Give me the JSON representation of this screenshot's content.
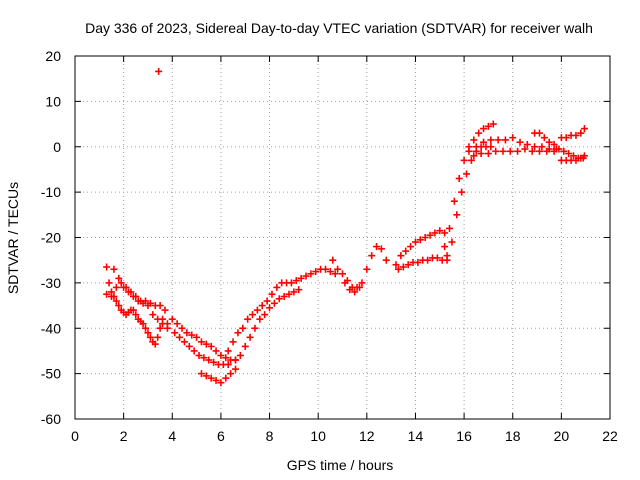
{
  "chart_data": {
    "type": "scatter",
    "title": "Day 336 of 2023, Sidereal Day-to-day VTEC variation (SDTVAR) for receiver walh",
    "xlabel": "GPS time / hours",
    "ylabel": "SDTVAR / TECUs",
    "xlim": [
      0,
      22
    ],
    "ylim": [
      -60,
      20
    ],
    "xticks": [
      0,
      2,
      4,
      6,
      8,
      10,
      12,
      14,
      16,
      18,
      20,
      22
    ],
    "yticks": [
      -60,
      -50,
      -40,
      -30,
      -20,
      -10,
      0,
      10,
      20
    ],
    "grid": true,
    "marker": "+",
    "series": [
      {
        "name": "SDTVAR",
        "color": "#ff0000",
        "x": [
          1.3,
          1.4,
          1.5,
          1.6,
          1.7,
          1.8,
          1.9,
          2.0,
          2.1,
          2.2,
          2.3,
          2.4,
          2.5,
          2.6,
          2.7,
          2.8,
          2.9,
          3.0,
          3.1,
          3.2,
          3.3,
          3.4,
          3.5,
          3.6,
          3.7,
          3.8,
          1.3,
          1.5,
          1.7,
          1.9,
          2.1,
          2.3,
          2.5,
          2.7,
          2.9,
          3.1,
          3.3,
          3.5,
          1.6,
          1.8,
          2.0,
          2.2,
          2.4,
          2.6,
          2.8,
          3.0,
          3.2,
          3.4,
          3.6,
          3.8,
          3.44,
          4.0,
          4.2,
          4.4,
          4.6,
          4.8,
          5.0,
          5.2,
          5.4,
          5.6,
          5.8,
          6.0,
          6.2,
          6.4,
          6.6,
          4.1,
          4.3,
          4.5,
          4.7,
          4.9,
          5.1,
          5.3,
          5.5,
          5.7,
          5.9,
          6.1,
          6.3,
          5.2,
          5.4,
          5.6,
          5.8,
          6.0,
          6.2,
          6.4,
          6.6,
          6.3,
          6.5,
          6.7,
          6.9,
          7.1,
          7.3,
          7.5,
          7.7,
          7.9,
          8.1,
          8.3,
          8.5,
          8.7,
          8.9,
          9.1,
          9.3,
          9.5,
          9.7,
          9.9,
          10.1,
          10.3,
          10.5,
          10.7,
          6.6,
          6.8,
          7.0,
          7.2,
          7.4,
          7.6,
          7.8,
          8.0,
          8.2,
          8.4,
          8.6,
          8.8,
          9.0,
          9.2,
          10.6,
          10.8,
          11.0,
          11.2,
          11.4,
          11.6,
          11.8,
          12.0,
          12.2,
          12.4,
          12.6,
          12.8,
          11.1,
          11.3,
          11.5,
          11.7,
          13.2,
          13.4,
          13.6,
          13.8,
          14.0,
          14.2,
          14.4,
          14.6,
          14.8,
          15.0,
          15.2,
          13.3,
          13.5,
          13.7,
          13.9,
          14.1,
          14.3,
          14.5,
          14.7,
          14.9,
          15.1,
          15.3,
          15.2,
          15.4,
          15.6,
          15.8,
          16.0,
          16.2,
          16.4,
          16.6,
          16.8,
          17.0,
          17.2,
          15.3,
          15.5,
          15.7,
          15.9,
          16.1,
          16.3,
          16.5,
          16.7,
          16.9,
          17.1,
          16.2,
          16.5,
          16.8,
          17.1,
          17.4,
          17.7,
          18.0,
          18.3,
          18.6,
          18.9,
          19.2,
          19.5,
          19.8,
          16.4,
          16.7,
          17.0,
          17.3,
          17.6,
          17.9,
          18.2,
          18.5,
          18.8,
          19.1,
          19.4,
          19.7,
          18.9,
          19.1,
          19.3,
          19.5,
          19.7,
          19.9,
          20.1,
          20.3,
          20.5,
          20.7,
          20.9,
          20.0,
          20.2,
          20.4,
          20.6,
          20.8,
          20.95,
          20.0,
          20.2,
          20.4,
          20.6,
          20.8,
          20.95
        ],
        "y": [
          -26.5,
          -30,
          -32,
          -33,
          -34,
          -35,
          -36,
          -36.5,
          -37,
          -36.5,
          -36,
          -36,
          -37,
          -38,
          -38.5,
          -39,
          -40,
          -41,
          -42,
          -43,
          -43.5,
          -42,
          -40,
          -38,
          -36,
          -39,
          -32.5,
          -33,
          -31,
          -30,
          -31,
          -32,
          -33,
          -34,
          -34,
          -34.5,
          -35,
          -35,
          -27,
          -29,
          -31,
          -32,
          -33,
          -34,
          -34.5,
          -35,
          -37,
          -38,
          -39,
          -40,
          16.6,
          -38,
          -39,
          -40,
          -41,
          -41.5,
          -42,
          -43,
          -43.5,
          -44,
          -45,
          -46,
          -46.5,
          -47,
          -47,
          -41,
          -42,
          -43,
          -44,
          -45,
          -46,
          -46.5,
          -47,
          -47.5,
          -48,
          -48,
          -48,
          -50,
          -50.5,
          -51,
          -51.5,
          -52,
          -51,
          -50,
          -49,
          -45,
          -43,
          -41,
          -40,
          -38,
          -37,
          -36,
          -35,
          -34,
          -32.5,
          -31,
          -30,
          -30,
          -30,
          -29.5,
          -29,
          -28.5,
          -28,
          -27.5,
          -27,
          -27,
          -27.5,
          -28,
          -47,
          -46,
          -44,
          -42,
          -40,
          -38,
          -37,
          -35.5,
          -34.5,
          -33.5,
          -33,
          -32.5,
          -32,
          -31.5,
          -25,
          -27,
          -28,
          -29.5,
          -31,
          -31,
          -30,
          -27,
          -24,
          -22,
          -22.5,
          -25,
          -30,
          -31.5,
          -32,
          -31,
          -26,
          -24,
          -23,
          -22,
          -21,
          -20.5,
          -20,
          -19.5,
          -19,
          -18.5,
          -19,
          -27,
          -26.5,
          -26,
          -25.5,
          -25.5,
          -25,
          -25,
          -24.5,
          -24.5,
          -25,
          -24,
          -22,
          -18,
          -12,
          -7,
          -3,
          0,
          1.5,
          3,
          4,
          4.5,
          5,
          -25,
          -21,
          -15,
          -10,
          -6,
          -3,
          -1,
          0,
          0,
          0,
          -1,
          0,
          1,
          1.5,
          1.5,
          1.5,
          2,
          1,
          0.5,
          0,
          0,
          -0.5,
          -0.5,
          -2,
          -1.5,
          -1.5,
          -1,
          -1,
          -1,
          -1,
          -0.5,
          -1,
          -1,
          -1,
          -1,
          3,
          3,
          2,
          1,
          0.5,
          -0.5,
          -1,
          -1.5,
          -2,
          -2.5,
          -2.5,
          2,
          2,
          2.5,
          2.5,
          3,
          4,
          -3,
          -3,
          -3,
          -3,
          -2.5,
          -2
        ]
      }
    ]
  }
}
